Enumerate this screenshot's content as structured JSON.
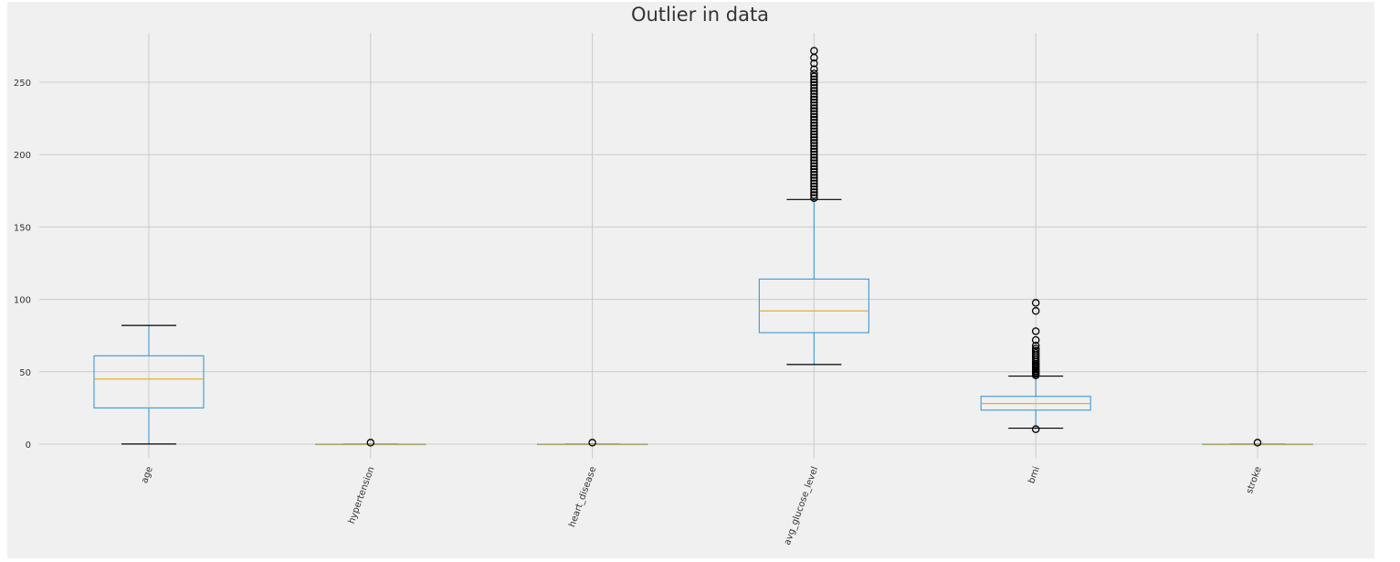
{
  "chart_data": {
    "type": "box",
    "title": "Outlier in data",
    "xlabel": "",
    "ylabel": "",
    "ylim": [
      -10,
      285
    ],
    "yticks": [
      0,
      50,
      100,
      150,
      200,
      250
    ],
    "grid": true,
    "categories": [
      "age",
      "hypertension",
      "heart_disease",
      "avg_glucose_level",
      "bmi",
      "stroke"
    ],
    "boxes": [
      {
        "name": "age",
        "whisker_low": 0.08,
        "q1": 25,
        "median": 45,
        "q3": 61,
        "whisker_high": 82,
        "outliers": []
      },
      {
        "name": "hypertension",
        "whisker_low": 0,
        "q1": 0,
        "median": 0,
        "q3": 0,
        "whisker_high": 0,
        "outliers": [
          1
        ]
      },
      {
        "name": "heart_disease",
        "whisker_low": 0,
        "q1": 0,
        "median": 0,
        "q3": 0,
        "whisker_high": 0,
        "outliers": [
          1
        ]
      },
      {
        "name": "avg_glucose_level",
        "whisker_low": 55,
        "q1": 77,
        "median": 92,
        "q3": 114,
        "whisker_high": 169,
        "outliers": [
          170,
          172,
          174,
          176,
          178,
          180,
          182,
          184,
          186,
          188,
          190,
          192,
          194,
          196,
          198,
          200,
          202,
          204,
          206,
          208,
          210,
          212,
          214,
          216,
          218,
          220,
          222,
          224,
          226,
          228,
          230,
          232,
          234,
          236,
          238,
          240,
          242,
          244,
          246,
          248,
          250,
          252,
          254,
          256,
          259,
          263,
          267,
          271.7
        ]
      },
      {
        "name": "bmi",
        "whisker_low": 11,
        "q1": 23.5,
        "median": 28,
        "q3": 33,
        "whisker_high": 47,
        "outliers": [
          10.3,
          47.5,
          48.5,
          49.5,
          50.5,
          51.5,
          52.5,
          53.5,
          54.5,
          55.5,
          57,
          58.5,
          60,
          61.5,
          63,
          64.5,
          66,
          68,
          71.9,
          78,
          92,
          97.6
        ]
      },
      {
        "name": "stroke",
        "whisker_low": 0,
        "q1": 0,
        "median": 0,
        "q3": 0,
        "whisker_high": 0,
        "outliers": [
          1
        ]
      }
    ],
    "colors": {
      "box": "#4a9fd8",
      "median": "#e5ae38",
      "whisker_cap": "#000000",
      "outlier": "#000000",
      "grid": "#cbcbcb",
      "background": "#f0f0f0",
      "tick_text": "#333333"
    }
  }
}
